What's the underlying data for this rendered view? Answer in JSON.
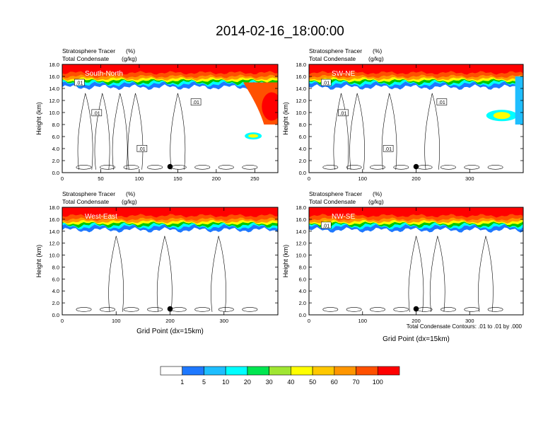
{
  "figure_title": "2014-02-16_18:00:00",
  "footnote": "Total Condensate Contours: .01 to .01 by .000",
  "colorbar": {
    "labels": [
      "1",
      "5",
      "10",
      "20",
      "30",
      "40",
      "50",
      "60",
      "70",
      "100"
    ],
    "colors": [
      "#ffffff",
      "#1e78ff",
      "#1ebeff",
      "#00ffff",
      "#00e650",
      "#00c800",
      "#a0e632",
      "#ffff00",
      "#ffc800",
      "#ff9600",
      "#ff5000",
      "#ff0000"
    ]
  },
  "chart_data": [
    {
      "type": "heatmap",
      "title": "South-North",
      "subtitle_left_1": "Stratosphere Tracer",
      "subtitle_right_1": "(%)",
      "subtitle_left_2": "Total Condensate",
      "subtitle_right_2": "(g/kg)",
      "ylabel": "Height (km)",
      "xlabel": "",
      "xlim": [
        0,
        280
      ],
      "ylim": [
        0,
        18
      ],
      "xticks": [
        "0",
        "50",
        "100",
        "150",
        "200",
        "250"
      ],
      "yticks": [
        "0.0",
        "2.0",
        "4.0",
        "6.0",
        "8.0",
        "10.0",
        "12.0",
        "14.0",
        "16.0",
        "18.0"
      ],
      "contour_labels": [
        ".01",
        ".01",
        ".01",
        ".01"
      ],
      "marker_x": 140,
      "marker_y": 1.0
    },
    {
      "type": "heatmap",
      "title": "SW-NE",
      "subtitle_left_1": "Stratosphere Tracer",
      "subtitle_right_1": "(%)",
      "subtitle_left_2": "Total Condensate",
      "subtitle_right_2": "(g/kg)",
      "ylabel": "Height (km)",
      "xlabel": "",
      "xlim": [
        0,
        400
      ],
      "ylim": [
        0,
        18
      ],
      "xticks": [
        "0",
        "100",
        "200",
        "300"
      ],
      "yticks": [
        "0.0",
        "2.0",
        "4.0",
        "6.0",
        "8.0",
        "10.0",
        "12.0",
        "14.0",
        "16.0",
        "18.0"
      ],
      "contour_labels": [
        ".01",
        ".01",
        ".01",
        ".01"
      ],
      "marker_x": 200,
      "marker_y": 1.0
    },
    {
      "type": "heatmap",
      "title": "West-East",
      "subtitle_left_1": "Stratosphere Tracer",
      "subtitle_right_1": "(%)",
      "subtitle_left_2": "Total Condensate",
      "subtitle_right_2": "(g/kg)",
      "ylabel": "Height (km)",
      "xlabel": "Grid Point (dx=15km)",
      "xlim": [
        0,
        400
      ],
      "ylim": [
        0,
        18
      ],
      "xticks": [
        "0",
        "100",
        "200",
        "300"
      ],
      "yticks": [
        "0.0",
        "2.0",
        "4.0",
        "6.0",
        "8.0",
        "10.0",
        "12.0",
        "14.0",
        "16.0",
        "18.0"
      ],
      "contour_labels": [],
      "marker_x": 200,
      "marker_y": 1.0
    },
    {
      "type": "heatmap",
      "title": "NW-SE",
      "subtitle_left_1": "Stratosphere Tracer",
      "subtitle_right_1": "(%)",
      "subtitle_left_2": "Total Condensate",
      "subtitle_right_2": "(g/kg)",
      "ylabel": "Height (km)",
      "xlabel": "Grid Point (dx=15km)",
      "xlim": [
        0,
        400
      ],
      "ylim": [
        0,
        18
      ],
      "xticks": [
        "0",
        "100",
        "200",
        "300"
      ],
      "yticks": [
        "0.0",
        "2.0",
        "4.0",
        "6.0",
        "8.0",
        "10.0",
        "12.0",
        "14.0",
        "16.0",
        "18.0"
      ],
      "contour_labels": [
        ".01"
      ],
      "marker_x": 200,
      "marker_y": 1.0
    }
  ]
}
